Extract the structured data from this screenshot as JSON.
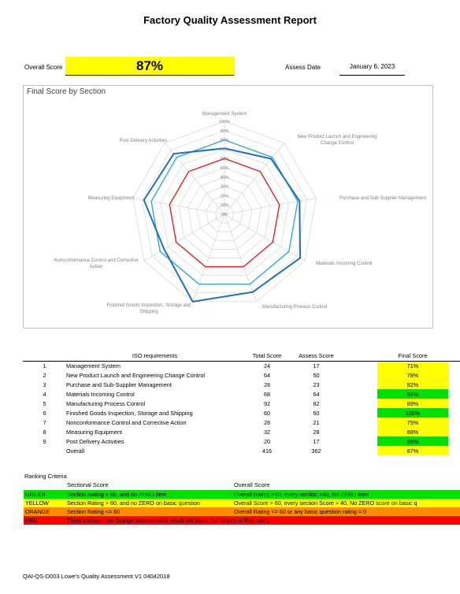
{
  "report": {
    "title": "Factory Quality Assessment Report",
    "overall_score_label": "Overall Score",
    "overall_score_value": "87%",
    "assess_date_label": "Assess Date",
    "assess_date_value": "January 6, 2023"
  },
  "colors": {
    "yellow": "#ffff00",
    "green": "#00e000",
    "orange": "#ff8c00",
    "red": "#ff0000",
    "series_assess": "#1f6fc1",
    "series_mid": "#35a8d8",
    "series_red": "#e02020"
  },
  "chart_data": {
    "type": "radar",
    "title": "Final Score by Section",
    "categories": [
      "Management System",
      "New Product Launch and Engineering Change Control",
      "Purchase and Sub-Supplier Management",
      "Materials Incoming Control",
      "Manufacturing Process Control",
      "Finished Goods Inspection, Storage and Shipping",
      "Nonconformance Control and Corrective Action",
      "Measuring Equipment",
      "Post Delivery Activities"
    ],
    "category_label_lines": [
      [
        "Management System"
      ],
      [
        "New Product Launch and Engineering",
        "Change Control"
      ],
      [
        "Purchase and Sub-Supplier Management"
      ],
      [
        "Materials Incoming Control"
      ],
      [
        "Manufacturing Process Control"
      ],
      [
        "Finished Goods Inspection, Storage and",
        "Shipping"
      ],
      [
        "Nonconformance Control and Corrective",
        "Action"
      ],
      [
        "Measuring Equipment"
      ],
      [
        "Post Delivery Activities"
      ]
    ],
    "tick_labels": [
      "0%",
      "10%",
      "20%",
      "30%",
      "40%",
      "50%",
      "60%",
      "70%",
      "80%",
      "90%",
      "100%"
    ],
    "rlim": [
      0,
      100
    ],
    "grid": true,
    "series": [
      {
        "values": [
          71,
          78,
          82,
          94,
          89,
          100,
          75,
          88,
          85
        ]
      },
      {
        "values": [
          60,
          60,
          60,
          60,
          60,
          60,
          60,
          60,
          60
        ]
      },
      {
        "values": [
          80,
          80,
          80,
          80,
          80,
          80,
          80,
          80,
          80
        ]
      }
    ]
  },
  "table": {
    "headers": {
      "req": "ISO requirements",
      "total": "Total Score",
      "assess": "Assess Score",
      "final": "Final Score"
    },
    "rows": [
      {
        "num": "1",
        "req": "Management System",
        "total": "24",
        "assess": "17",
        "final": "71%",
        "status": "yellow"
      },
      {
        "num": "2",
        "req": "New Product Launch and Engineering Change Control",
        "total": "64",
        "assess": "50",
        "final": "78%",
        "status": "yellow"
      },
      {
        "num": "3",
        "req": "Purchase and Sub-Supplier Management",
        "total": "28",
        "assess": "23",
        "final": "82%",
        "status": "yellow"
      },
      {
        "num": "4",
        "req": "Materials Incoming Control",
        "total": "68",
        "assess": "64",
        "final": "94%",
        "status": "green"
      },
      {
        "num": "5",
        "req": "Manufacturing Process Control",
        "total": "92",
        "assess": "82",
        "final": "89%",
        "status": "yellow"
      },
      {
        "num": "6",
        "req": "Finished Goods Inspection, Storage and Shipping",
        "total": "60",
        "assess": "60",
        "final": "100%",
        "status": "green"
      },
      {
        "num": "7",
        "req": "Nonconformance Control and Corrective Action",
        "total": "28",
        "assess": "21",
        "final": "75%",
        "status": "yellow"
      },
      {
        "num": "8",
        "req": "Measuring Equipment",
        "total": "32",
        "assess": "28",
        "final": "88%",
        "status": "yellow"
      },
      {
        "num": "9",
        "req": "Post Delivery Activities",
        "total": "20",
        "assess": "17",
        "final": "85%",
        "status": "green"
      },
      {
        "num": "",
        "req": "Overall",
        "total": "416",
        "assess": "362",
        "final": "87%",
        "status": "yellow"
      }
    ]
  },
  "ranking": {
    "title": "Ranking Criteria",
    "section_header": "Sectional Score",
    "overall_header": "Overall Score",
    "rows": [
      {
        "name": "GREEN",
        "section": "Section Rating > 80, and no ZERO item",
        "overall": "Overall Rating >80, every section >60, No ZERO item",
        "color": "green"
      },
      {
        "name": "YELLOW",
        "section": "Section Rating > 60, and no ZERO on basic question",
        "overall": "Overall Score > 60, every section Score > 40, No ZERO score on basic q",
        "color": "yellow"
      },
      {
        "name": "ORANGE",
        "section": "Section Rating <= 60",
        "overall": "Overall Rating <= 60 or any basic question rating = 0",
        "color": "orange"
      },
      {
        "name": "RED",
        "section": "Three consecutive Orange assessments result will place the factory in Red rating",
        "overall": "",
        "color": "red"
      }
    ]
  },
  "footer": "QAI-QS-D003 Lowe's Quality Assessment V1 04042018"
}
